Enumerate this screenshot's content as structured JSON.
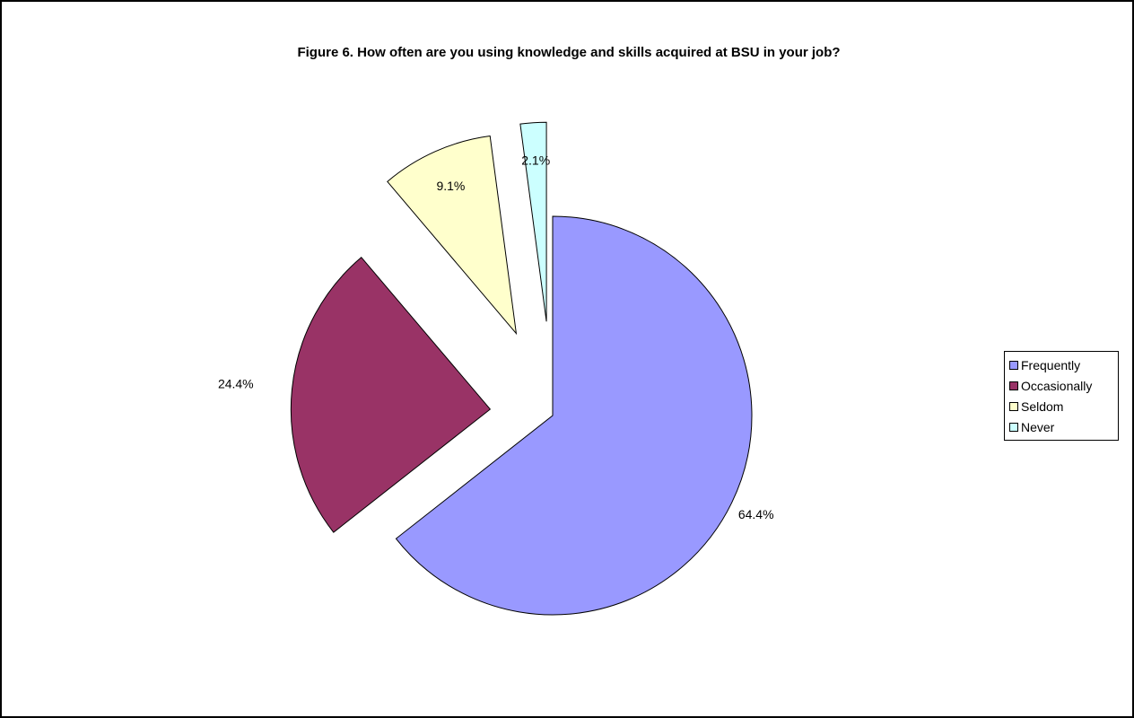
{
  "chart_data": {
    "type": "pie",
    "title": "Figure 6.  How often are you using knowledge and skills acquired at BSU in your job?",
    "categories": [
      "Frequently",
      "Occasionally",
      "Seldom",
      "Never"
    ],
    "values": [
      64.4,
      24.4,
      9.1,
      2.1
    ],
    "labels": [
      "64.4%",
      "24.4%",
      "9.1%",
      "2.1%"
    ],
    "colors": [
      "#9999FF",
      "#993366",
      "#FFFFCC",
      "#CCFFFF"
    ],
    "exploded": true,
    "legend_position": "right"
  }
}
